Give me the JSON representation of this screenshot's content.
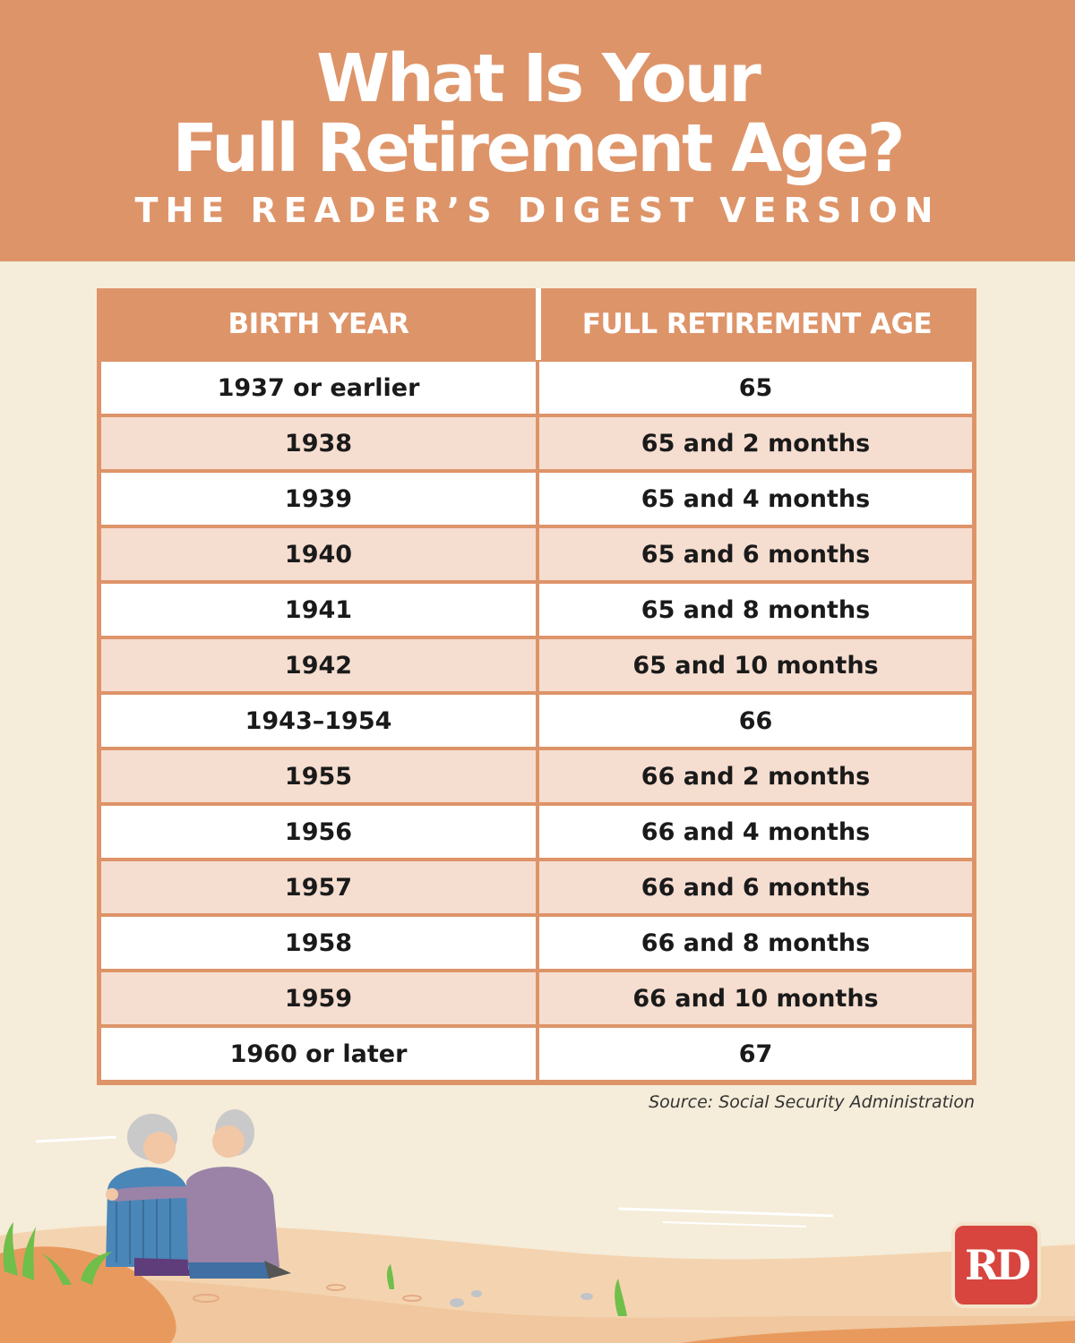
{
  "header": {
    "title_line1": "What Is Your",
    "title_line2": "Full Retirement Age?",
    "subtitle": "THE READER’S DIGEST VERSION"
  },
  "table": {
    "columns": [
      "BIRTH YEAR",
      "FULL RETIREMENT AGE"
    ],
    "rows": [
      [
        "1937 or earlier",
        "65"
      ],
      [
        "1938",
        "65 and 2 months"
      ],
      [
        "1939",
        "65 and 4 months"
      ],
      [
        "1940",
        "65 and 6 months"
      ],
      [
        "1941",
        "65 and 8 months"
      ],
      [
        "1942",
        "65 and 10 months"
      ],
      [
        "1943–1954",
        "66"
      ],
      [
        "1955",
        "66 and 2 months"
      ],
      [
        "1956",
        "66 and 4 months"
      ],
      [
        "1957",
        "66 and 6 months"
      ],
      [
        "1958",
        "66 and 8 months"
      ],
      [
        "1959",
        "66 and 10 months"
      ],
      [
        "1960 or later",
        "67"
      ]
    ]
  },
  "source": "Source: Social Security Administration",
  "logo": {
    "text": "RD",
    "color": "#d7453e"
  },
  "colors": {
    "accent": "#de9469",
    "background": "#f5ecd9",
    "row_alt": "#f5ddd0"
  }
}
